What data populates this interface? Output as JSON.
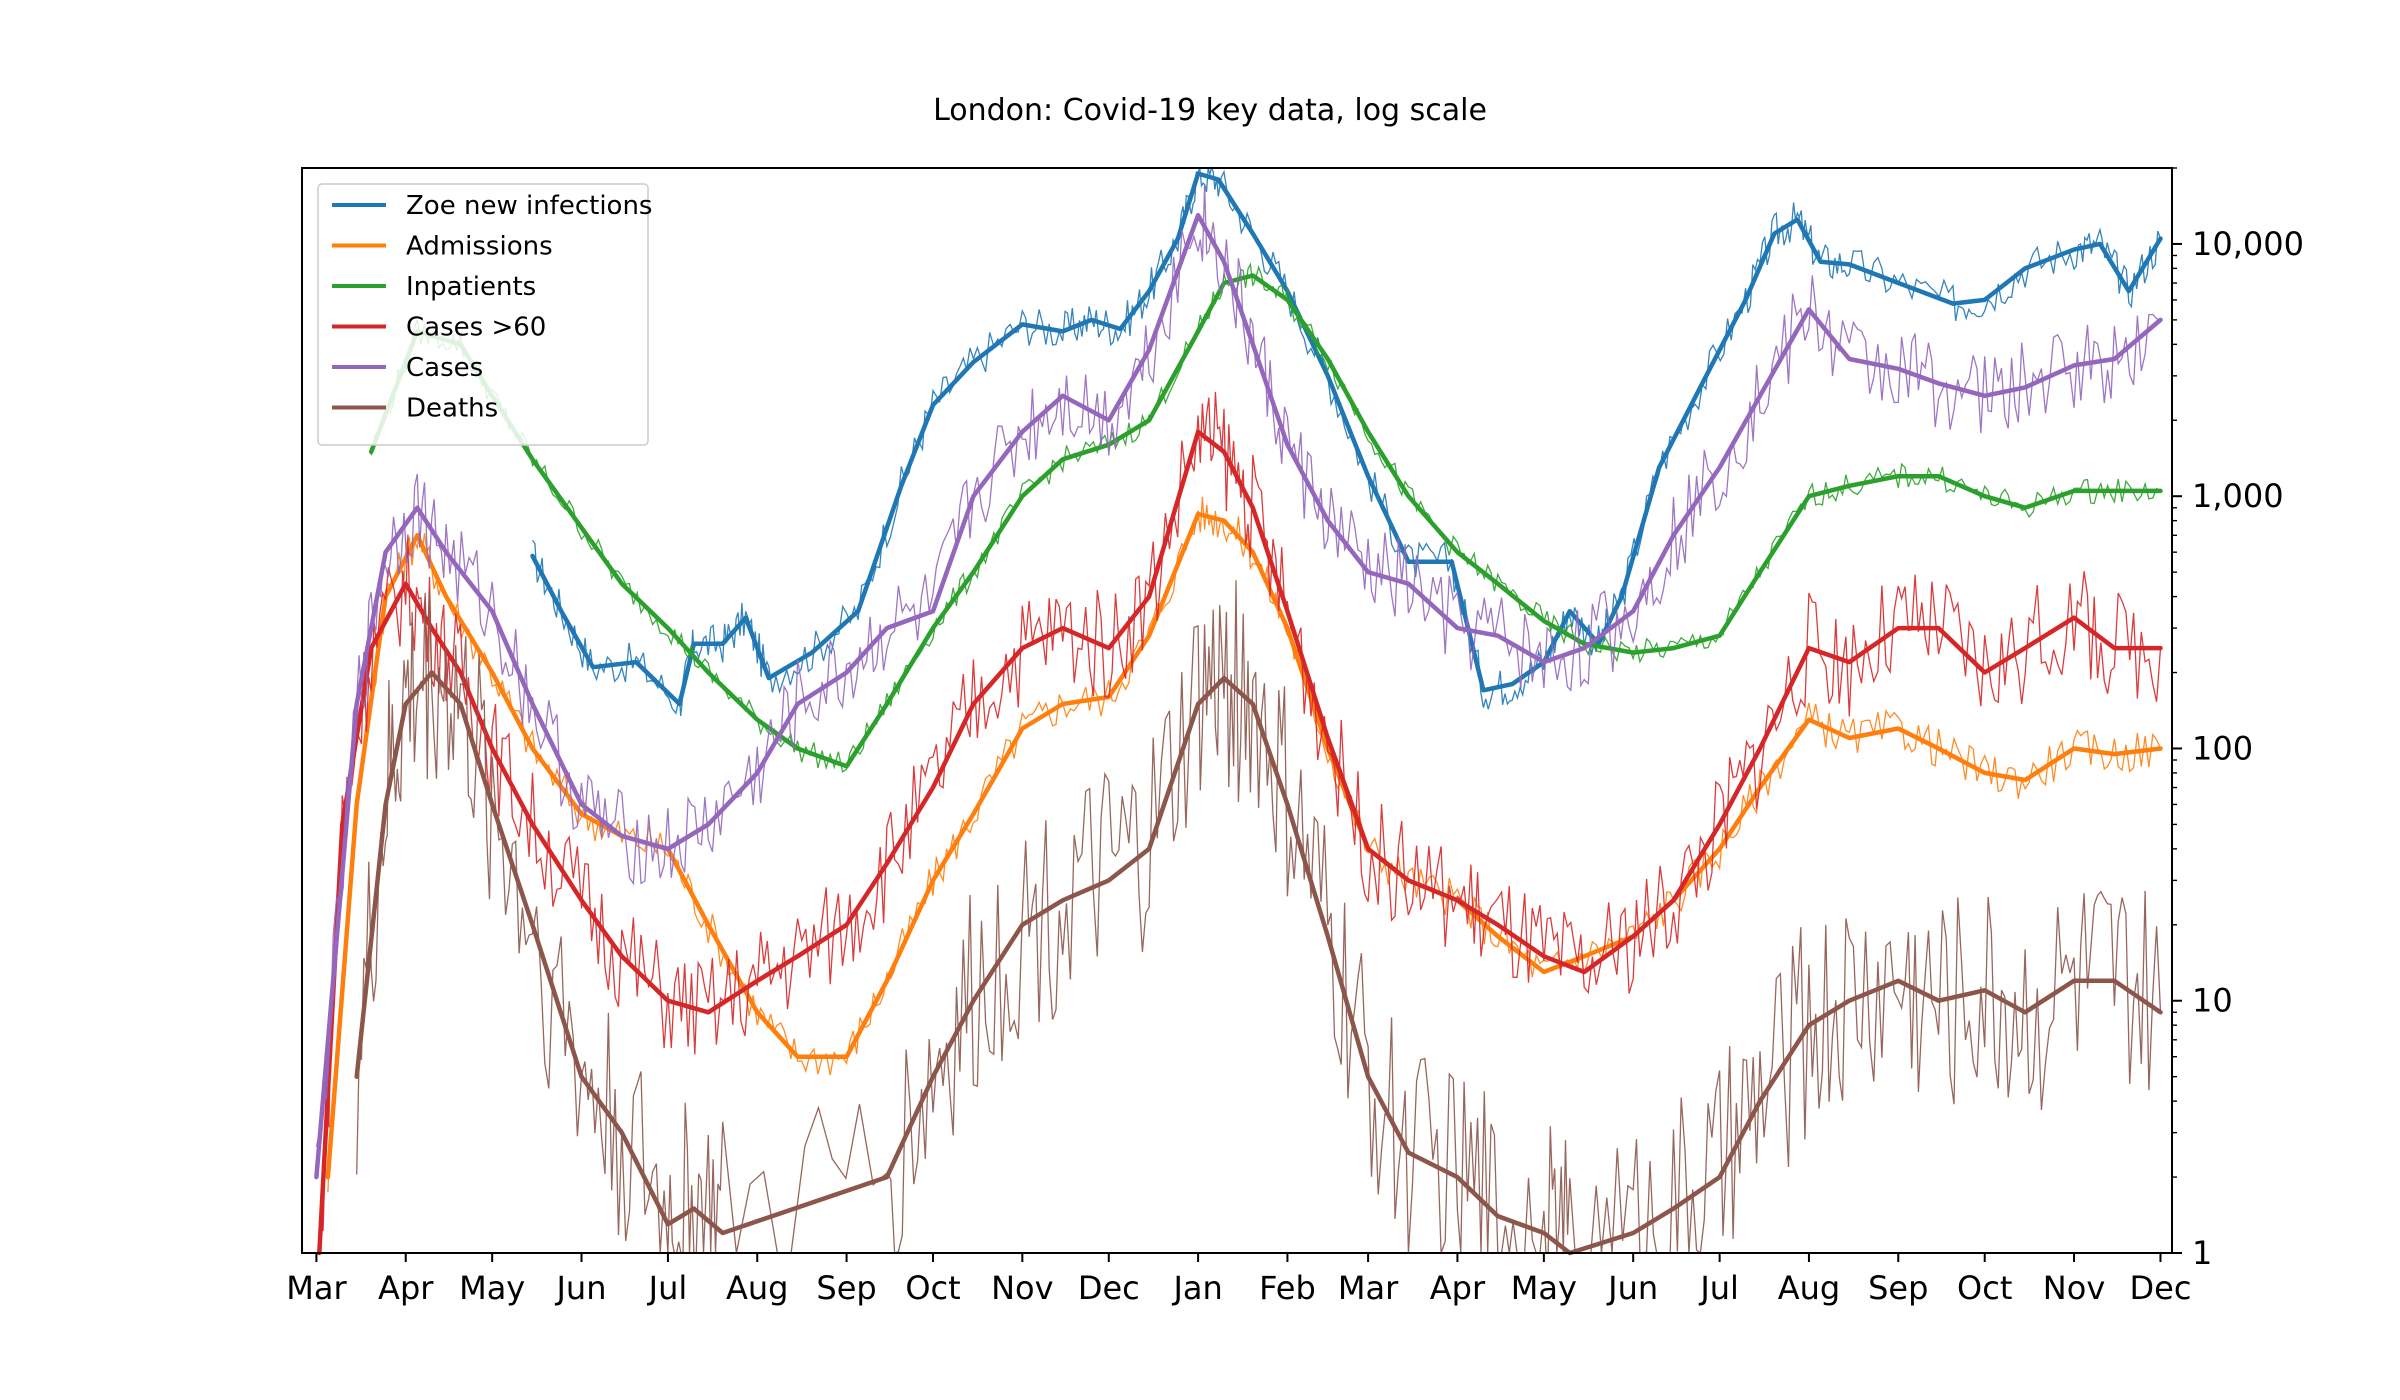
{
  "chart_data": {
    "type": "line",
    "title": "London: Covid-19 key data, log scale",
    "xlabel": "",
    "ylabel": "",
    "y_scale": "log",
    "ylim": [
      1,
      20000
    ],
    "xlim": [
      "2020-02-25",
      "2021-12-05"
    ],
    "y_axis_position": "right",
    "grid": false,
    "legend": "top-left",
    "x_ticks": [
      {
        "date": "2020-03-01",
        "label": "Mar"
      },
      {
        "date": "2020-04-01",
        "label": "Apr"
      },
      {
        "date": "2020-05-01",
        "label": "May"
      },
      {
        "date": "2020-06-01",
        "label": "Jun"
      },
      {
        "date": "2020-07-01",
        "label": "Jul"
      },
      {
        "date": "2020-08-01",
        "label": "Aug"
      },
      {
        "date": "2020-09-01",
        "label": "Sep"
      },
      {
        "date": "2020-10-01",
        "label": "Oct"
      },
      {
        "date": "2020-11-01",
        "label": "Nov"
      },
      {
        "date": "2020-12-01",
        "label": "Dec"
      },
      {
        "date": "2021-01-01",
        "label": "Jan"
      },
      {
        "date": "2021-02-01",
        "label": "Feb"
      },
      {
        "date": "2021-03-01",
        "label": "Mar"
      },
      {
        "date": "2021-04-01",
        "label": "Apr"
      },
      {
        "date": "2021-05-01",
        "label": "May"
      },
      {
        "date": "2021-06-01",
        "label": "Jun"
      },
      {
        "date": "2021-07-01",
        "label": "Jul"
      },
      {
        "date": "2021-08-01",
        "label": "Aug"
      },
      {
        "date": "2021-09-01",
        "label": "Sep"
      },
      {
        "date": "2021-10-01",
        "label": "Oct"
      },
      {
        "date": "2021-11-01",
        "label": "Nov"
      },
      {
        "date": "2021-12-01",
        "label": "Dec"
      }
    ],
    "y_ticks": [
      {
        "value": 1,
        "label": "1"
      },
      {
        "value": 10,
        "label": "10"
      },
      {
        "value": 100,
        "label": "100"
      },
      {
        "value": 1000,
        "label": "1,000"
      },
      {
        "value": 10000,
        "label": "10,000"
      }
    ],
    "series": [
      {
        "name": "Zoe new infections",
        "color": "#1f77b4",
        "x": [
          "2020-05-15",
          "2020-05-25",
          "2020-06-05",
          "2020-06-20",
          "2020-07-05",
          "2020-07-10",
          "2020-07-20",
          "2020-07-28",
          "2020-08-05",
          "2020-08-20",
          "2020-09-05",
          "2020-09-20",
          "2020-10-01",
          "2020-10-15",
          "2020-11-01",
          "2020-11-15",
          "2020-11-25",
          "2020-12-05",
          "2020-12-15",
          "2020-12-25",
          "2021-01-01",
          "2021-01-08",
          "2021-01-20",
          "2021-02-01",
          "2021-02-15",
          "2021-03-01",
          "2021-03-15",
          "2021-03-30",
          "2021-04-10",
          "2021-04-20",
          "2021-05-01",
          "2021-05-10",
          "2021-05-20",
          "2021-05-28",
          "2021-06-10",
          "2021-06-25",
          "2021-07-10",
          "2021-07-20",
          "2021-07-28",
          "2021-08-05",
          "2021-08-15",
          "2021-09-01",
          "2021-09-20",
          "2021-10-01",
          "2021-10-15",
          "2021-11-01",
          "2021-11-10",
          "2021-11-20",
          "2021-12-01"
        ],
        "values": [
          580,
          350,
          210,
          220,
          150,
          260,
          260,
          330,
          190,
          240,
          350,
          1100,
          2300,
          3400,
          4800,
          4500,
          5000,
          4600,
          6500,
          10500,
          19000,
          18000,
          11000,
          6500,
          3000,
          1200,
          550,
          550,
          170,
          180,
          220,
          350,
          260,
          400,
          1300,
          2800,
          6000,
          11000,
          12500,
          8500,
          8300,
          7000,
          5800,
          6000,
          8000,
          9500,
          10000,
          6500,
          10500
        ]
      },
      {
        "name": "Admissions",
        "color": "#ff7f0e",
        "x": [
          "2020-03-05",
          "2020-03-15",
          "2020-03-25",
          "2020-04-05",
          "2020-04-15",
          "2020-05-01",
          "2020-05-15",
          "2020-06-01",
          "2020-06-15",
          "2020-07-01",
          "2020-07-15",
          "2020-08-01",
          "2020-08-15",
          "2020-09-01",
          "2020-09-15",
          "2020-10-01",
          "2020-10-15",
          "2020-11-01",
          "2020-11-15",
          "2020-12-01",
          "2020-12-15",
          "2021-01-01",
          "2021-01-10",
          "2021-01-20",
          "2021-02-01",
          "2021-02-15",
          "2021-03-01",
          "2021-03-15",
          "2021-04-01",
          "2021-04-15",
          "2021-05-01",
          "2021-05-15",
          "2021-06-01",
          "2021-06-15",
          "2021-07-01",
          "2021-07-15",
          "2021-08-01",
          "2021-08-15",
          "2021-09-01",
          "2021-09-15",
          "2021-10-01",
          "2021-10-15",
          "2021-11-01",
          "2021-11-15",
          "2021-12-01"
        ],
        "values": [
          2,
          60,
          400,
          700,
          400,
          200,
          100,
          55,
          45,
          40,
          20,
          9,
          6,
          6,
          12,
          30,
          55,
          120,
          150,
          160,
          280,
          850,
          800,
          600,
          300,
          100,
          40,
          30,
          25,
          18,
          13,
          15,
          18,
          25,
          40,
          70,
          130,
          110,
          120,
          100,
          80,
          75,
          100,
          95,
          100
        ]
      },
      {
        "name": "Inpatients",
        "color": "#2ca02c",
        "x": [
          "2020-03-20",
          "2020-04-05",
          "2020-04-20",
          "2020-05-01",
          "2020-05-15",
          "2020-06-01",
          "2020-06-15",
          "2020-07-01",
          "2020-07-15",
          "2020-08-01",
          "2020-08-15",
          "2020-09-01",
          "2020-09-15",
          "2020-10-01",
          "2020-10-15",
          "2020-11-01",
          "2020-11-15",
          "2020-12-01",
          "2020-12-15",
          "2021-01-01",
          "2021-01-10",
          "2021-01-20",
          "2021-02-01",
          "2021-02-15",
          "2021-03-01",
          "2021-03-15",
          "2021-04-01",
          "2021-04-15",
          "2021-05-01",
          "2021-05-15",
          "2021-06-01",
          "2021-06-15",
          "2021-07-01",
          "2021-07-15",
          "2021-08-01",
          "2021-08-15",
          "2021-09-01",
          "2021-09-15",
          "2021-10-01",
          "2021-10-15",
          "2021-11-01",
          "2021-11-15",
          "2021-12-01"
        ],
        "values": [
          1500,
          4500,
          4000,
          2500,
          1400,
          750,
          450,
          300,
          200,
          130,
          100,
          85,
          150,
          300,
          500,
          1000,
          1400,
          1600,
          2000,
          4500,
          7000,
          7500,
          6000,
          3500,
          1800,
          1000,
          600,
          450,
          320,
          260,
          240,
          250,
          280,
          500,
          1000,
          1100,
          1200,
          1200,
          1000,
          900,
          1050,
          1050,
          1050
        ]
      },
      {
        "name": "Cases >60",
        "color": "#d62728",
        "x": [
          "2020-03-02",
          "2020-03-10",
          "2020-03-20",
          "2020-04-01",
          "2020-04-10",
          "2020-04-20",
          "2020-05-01",
          "2020-05-15",
          "2020-06-01",
          "2020-06-15",
          "2020-07-01",
          "2020-07-15",
          "2020-08-01",
          "2020-08-15",
          "2020-09-01",
          "2020-09-15",
          "2020-10-01",
          "2020-10-15",
          "2020-11-01",
          "2020-11-15",
          "2020-12-01",
          "2020-12-15",
          "2021-01-01",
          "2021-01-10",
          "2021-01-20",
          "2021-02-01",
          "2021-02-15",
          "2021-03-01",
          "2021-03-15",
          "2021-04-01",
          "2021-04-15",
          "2021-05-01",
          "2021-05-15",
          "2021-06-01",
          "2021-06-15",
          "2021-07-01",
          "2021-07-15",
          "2021-08-01",
          "2021-08-15",
          "2021-09-01",
          "2021-09-15",
          "2021-10-01",
          "2021-10-15",
          "2021-11-01",
          "2021-11-15",
          "2021-12-01"
        ],
        "values": [
          1,
          50,
          250,
          450,
          300,
          200,
          100,
          50,
          25,
          15,
          10,
          9,
          12,
          15,
          20,
          35,
          70,
          150,
          250,
          300,
          250,
          400,
          1800,
          1500,
          900,
          350,
          110,
          40,
          30,
          25,
          20,
          15,
          13,
          18,
          25,
          50,
          100,
          250,
          220,
          300,
          300,
          200,
          250,
          330,
          250,
          250
        ]
      },
      {
        "name": "Cases",
        "color": "#9467bd",
        "x": [
          "2020-03-01",
          "2020-03-15",
          "2020-03-25",
          "2020-04-05",
          "2020-04-15",
          "2020-05-01",
          "2020-05-15",
          "2020-06-01",
          "2020-06-15",
          "2020-07-01",
          "2020-07-15",
          "2020-08-01",
          "2020-08-15",
          "2020-09-01",
          "2020-09-15",
          "2020-10-01",
          "2020-10-15",
          "2020-11-01",
          "2020-11-15",
          "2020-12-01",
          "2020-12-15",
          "2021-01-01",
          "2021-01-10",
          "2021-01-20",
          "2021-02-01",
          "2021-02-15",
          "2021-03-01",
          "2021-03-15",
          "2021-04-01",
          "2021-04-15",
          "2021-05-01",
          "2021-05-15",
          "2021-06-01",
          "2021-06-15",
          "2021-07-01",
          "2021-07-15",
          "2021-08-01",
          "2021-08-15",
          "2021-09-01",
          "2021-09-15",
          "2021-10-01",
          "2021-10-15",
          "2021-11-01",
          "2021-11-15",
          "2021-12-01"
        ],
        "values": [
          2,
          150,
          600,
          900,
          600,
          350,
          150,
          60,
          45,
          40,
          50,
          80,
          150,
          200,
          300,
          350,
          1000,
          1800,
          2500,
          2000,
          3800,
          13000,
          8500,
          4000,
          1600,
          800,
          500,
          450,
          300,
          280,
          220,
          250,
          350,
          700,
          1300,
          2500,
          5500,
          3500,
          3200,
          2800,
          2500,
          2700,
          3300,
          3500,
          5000
        ]
      },
      {
        "name": "Deaths",
        "color": "#8c564b",
        "x": [
          "2020-03-15",
          "2020-03-25",
          "2020-04-01",
          "2020-04-10",
          "2020-04-20",
          "2020-05-01",
          "2020-05-15",
          "2020-06-01",
          "2020-06-15",
          "2020-07-01",
          "2020-07-10",
          "2020-07-20",
          "2020-09-15",
          "2020-10-01",
          "2020-10-15",
          "2020-11-01",
          "2020-11-15",
          "2020-12-01",
          "2020-12-15",
          "2021-01-01",
          "2021-01-10",
          "2021-01-20",
          "2021-02-01",
          "2021-02-15",
          "2021-03-01",
          "2021-03-15",
          "2021-04-01",
          "2021-04-15",
          "2021-05-01",
          "2021-05-10",
          "2021-06-01",
          "2021-06-15",
          "2021-07-01",
          "2021-07-15",
          "2021-08-01",
          "2021-08-15",
          "2021-09-01",
          "2021-09-15",
          "2021-10-01",
          "2021-10-15",
          "2021-11-01",
          "2021-11-15",
          "2021-12-01"
        ],
        "values": [
          5,
          60,
          150,
          200,
          150,
          60,
          20,
          5,
          3,
          1.3,
          1.5,
          1.2,
          2,
          5,
          10,
          20,
          25,
          30,
          40,
          150,
          190,
          150,
          60,
          18,
          5,
          2.5,
          2,
          1.4,
          1.2,
          1,
          1.2,
          1.5,
          2,
          4,
          8,
          10,
          12,
          10,
          11,
          9,
          12,
          12,
          9
        ]
      }
    ]
  }
}
